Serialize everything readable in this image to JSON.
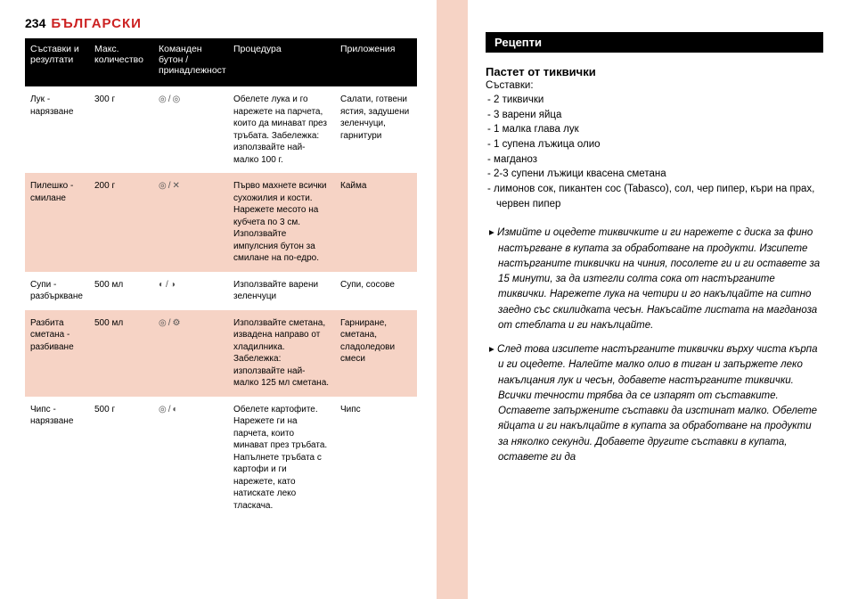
{
  "header": {
    "page_num": "234",
    "language": "БЪЛГАРСКИ"
  },
  "table": {
    "headers": [
      "Съставки и резултати",
      "Макс. количество",
      "Команден бутон / принадлежност",
      "Процедура",
      "Приложения"
    ],
    "rows": [
      {
        "alt": false,
        "c0": "Лук - нарязване",
        "c1": "300 г",
        "icons": "◎/◎",
        "c3": "Обелете лука и го нарежете на парчета, които да минават през тръбата. Забележка: използвайте най-малко 100 г.",
        "c4": "Салати, готвени ястия, задушени зеленчуци, гарнитури"
      },
      {
        "alt": true,
        "c0": "Пилешко - смилане",
        "c1": "200 г",
        "icons": "◎/✕",
        "c3": "Първо махнете всички сухожилия и кости. Нарежете месото на кубчета по 3 см. Използвайте импулсния бутон за смилане на по-едро.",
        "c4": "Кайма"
      },
      {
        "alt": false,
        "c0": "Супи - разбъркване",
        "c1": "500 мл",
        "icons": "◐/◑",
        "c3": "Използвайте варени зеленчуци",
        "c4": "Супи, сосове"
      },
      {
        "alt": true,
        "c0": "Разбита сметана - разбиване",
        "c1": "500 мл",
        "icons": "◎/⚙",
        "c3": "Използвайте сметана, извадена направо от хладилника. Забележка: използвайте най-малко 125 мл сметана.",
        "c4": "Гарниране, сметана, сладоледови смеси"
      },
      {
        "alt": false,
        "c0": "Чипс - нарязване",
        "c1": "500 г",
        "icons": "◎/◐",
        "c3": "Обелете картофите. Нарежете ги на парчета, които минават през тръбата. Напълнете тръбата с картофи и ги нарежете, като натискате леко тласкача.",
        "c4": "Чипс"
      }
    ]
  },
  "right": {
    "section": "Рецепти",
    "recipe_title": "Пастет от тиквички",
    "ing_label": "Съставки:",
    "ingredients": [
      "2 тиквички",
      "3 варени яйца",
      "1 малка глава лук",
      "1 супена лъжица олио",
      "магданоз",
      "2-3 супени лъжици квасена сметана",
      "лимонов сок, пикантен сос (Tabasco), сол, чер пипер, къри на прах, червен пипер"
    ],
    "steps": [
      "Измийте и оцедете тиквичките и ги нарежете с диска за фино настъргване в купата за обработване на продукти. Изсипете настърганите тиквички на чиния, посолете ги и ги оставете за 15 минути, за да изтегли солта сока от настърганите тиквички. Нарежете лука на четири и го накълцайте на ситно заедно със скилидката чесън. Накъсайте листата на магданоза от стеблата и ги накълцайте.",
      "След това изсипете настърганите тиквички върху чиста кърпа и ги оцедете. Налейте малко олио в тиган и запържете леко накълцания лук и чесън, добавете настърганите тиквички. Всички течности трябва да се изпарят от съставките. Оставете запържените съставки да изстинат малко. Обелете яйцата и ги накълцайте в купата за обработване на продукти за няколко секунди. Добавете другите съставки в купата, оставете ги да"
    ]
  }
}
